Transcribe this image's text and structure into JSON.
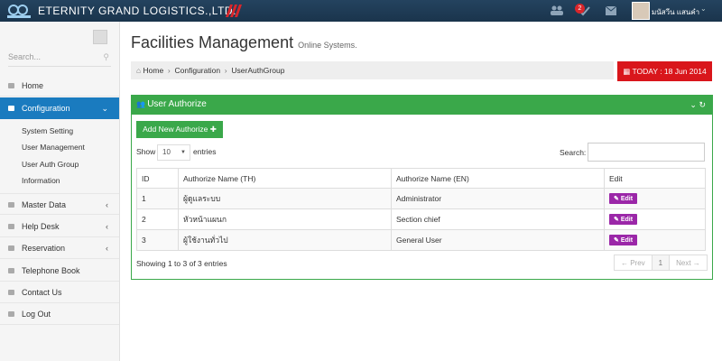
{
  "header": {
    "brand": "ETERNITY GRAND LOGISTICS.,LTD.",
    "badge": "2",
    "user": "มนัสวีน แสนคำ"
  },
  "sidebar": {
    "search": "Search...",
    "menu": [
      "Home",
      "Configuration",
      "Master Data",
      "Help Desk",
      "Reservation",
      "Telephone Book",
      "Contact Us",
      "Log Out"
    ],
    "submenu": [
      "System Setting",
      "User Management",
      "User Auth Group",
      "Information"
    ]
  },
  "page": {
    "title": "Facilities Management",
    "subtitle": "Online Systems.",
    "breadcrumb": [
      "Home",
      "Configuration",
      "UserAuthGroup"
    ],
    "today": "TODAY : 18 Jun 2014"
  },
  "panel": {
    "title": "User Authorize",
    "add_button": "Add New Authorize",
    "show": "Show",
    "length": "10",
    "entries": "entries",
    "search": "Search:",
    "table": {
      "headers": [
        "ID",
        "Authorize Name (TH)",
        "Authorize Name (EN)",
        "Edit"
      ],
      "rows": [
        [
          "1",
          "ผู้ดูแลระบบ",
          "Administrator",
          "Edit"
        ],
        [
          "2",
          "หัวหน้าแผนก",
          "Section chief",
          "Edit"
        ],
        [
          "3",
          "ผู้ใช้งานทั่วไป",
          "General User",
          "Edit"
        ]
      ]
    },
    "info": "Showing 1 to 3 of 3 entries",
    "pagination": [
      "← Prev",
      "1",
      "Next →"
    ]
  }
}
